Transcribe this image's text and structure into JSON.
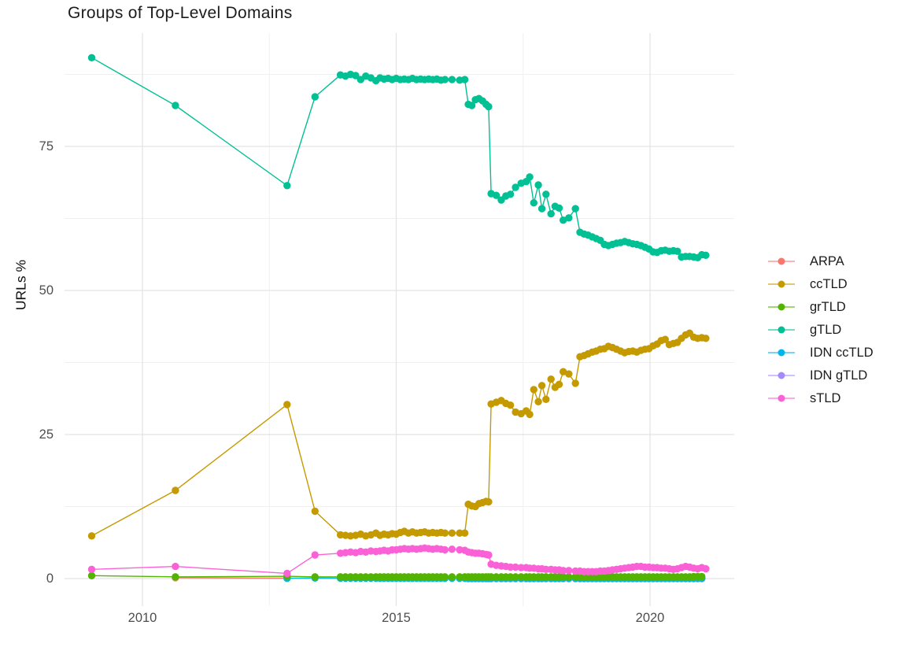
{
  "title": "Groups of Top-Level Domains",
  "y_axis": {
    "label": "URLs %",
    "tick_labels": [
      "0",
      "25",
      "50",
      "75"
    ],
    "tick_values": [
      0,
      25,
      50,
      75
    ],
    "minor_values": [
      12.5,
      37.5,
      62.5,
      87.5
    ]
  },
  "x_axis": {
    "tick_labels": [
      "2010",
      "2015",
      "2020"
    ],
    "tick_values": [
      2010,
      2015,
      2020
    ],
    "minor_values": [
      2012.5,
      2017.5
    ]
  },
  "legend": {
    "items": [
      {
        "label": "ARPA",
        "color": "#F8766D"
      },
      {
        "label": "ccTLD",
        "color": "#C49A00"
      },
      {
        "label": "grTLD",
        "color": "#53B400"
      },
      {
        "label": "gTLD",
        "color": "#00C094"
      },
      {
        "label": "IDN ccTLD",
        "color": "#00B6EB"
      },
      {
        "label": "IDN gTLD",
        "color": "#A58AFF"
      },
      {
        "label": "sTLD",
        "color": "#FB61D7"
      }
    ]
  },
  "colors": {
    "grid_major": "#e3e3e3",
    "grid_minor": "#f0f0f0",
    "axis_text": "#4e4e4e",
    "title_text": "#1c1c1c"
  },
  "chart_data": {
    "type": "line",
    "title": "Groups of Top-Level Domains",
    "xlabel": "",
    "ylabel": "URLs %",
    "ylim": [
      -2,
      93
    ],
    "xlim": [
      2008.35,
      2021.65
    ],
    "grid": true,
    "legend_position": "right",
    "x": [
      2009.0,
      2010.65,
      2012.85,
      2013.4,
      2013.9,
      2014.0,
      2014.1,
      2014.2,
      2014.3,
      2014.4,
      2014.5,
      2014.6,
      2014.68,
      2014.76,
      2014.84,
      2014.92,
      2015.0,
      2015.08,
      2015.16,
      2015.24,
      2015.32,
      2015.4,
      2015.48,
      2015.56,
      2015.64,
      2015.72,
      2015.8,
      2015.88,
      2015.96,
      2016.1,
      2016.25,
      2016.35,
      2016.42,
      2016.49,
      2016.56,
      2016.63,
      2016.7,
      2016.77,
      2016.82,
      2016.87,
      2016.97,
      2017.07,
      2017.16,
      2017.25,
      2017.35,
      2017.46,
      2017.56,
      2017.63,
      2017.71,
      2017.8,
      2017.87,
      2017.95,
      2018.05,
      2018.13,
      2018.21,
      2018.29,
      2018.4,
      2018.53,
      2018.62,
      2018.7,
      2018.78,
      2018.86,
      2018.94,
      2019.02,
      2019.1,
      2019.18,
      2019.26,
      2019.34,
      2019.42,
      2019.5,
      2019.58,
      2019.66,
      2019.74,
      2019.82,
      2019.9,
      2019.98,
      2020.06,
      2020.14,
      2020.22,
      2020.3,
      2020.38,
      2020.46,
      2020.54,
      2020.62,
      2020.7,
      2020.78,
      2020.86,
      2020.94,
      2021.02,
      2021.1
    ],
    "series": [
      {
        "name": "ARPA",
        "color": "#F8766D",
        "z": 0,
        "values": [
          null,
          0.15,
          0.07
        ]
      },
      {
        "name": "ccTLD",
        "color": "#C49A00",
        "z": 4,
        "values": [
          7.4,
          15.3,
          30.2,
          11.7,
          7.6,
          7.5,
          7.4,
          7.5,
          7.7,
          7.4,
          7.6,
          7.9,
          7.5,
          7.7,
          7.6,
          7.8,
          7.7,
          8.0,
          8.2,
          7.9,
          8.1,
          7.9,
          8.0,
          8.1,
          7.9,
          8.0,
          7.9,
          8.0,
          7.9,
          7.9,
          7.9,
          7.9,
          12.9,
          12.6,
          12.5,
          13.0,
          13.2,
          13.4,
          13.3,
          30.3,
          30.6,
          30.9,
          30.4,
          30.1,
          28.9,
          28.6,
          29.1,
          28.5,
          32.8,
          30.7,
          33.5,
          31.1,
          34.6,
          33.2,
          33.7,
          35.9,
          35.5,
          33.9,
          38.5,
          38.7,
          39.0,
          39.3,
          39.5,
          39.8,
          39.9,
          40.3,
          40.1,
          39.8,
          39.5,
          39.2,
          39.4,
          39.5,
          39.3,
          39.6,
          39.8,
          39.9,
          40.4,
          40.7,
          41.3,
          41.5,
          40.6,
          40.8,
          41.0,
          41.7,
          42.3,
          42.6,
          41.9,
          41.7,
          41.8,
          41.7
        ]
      },
      {
        "name": "grTLD",
        "color": "#53B400",
        "z": 3,
        "values": [
          0.5,
          0.3,
          0.4,
          0.3,
          0.3,
          0.3,
          0.3,
          0.3,
          0.3,
          0.3,
          0.3,
          0.3,
          0.3,
          0.3,
          0.3,
          0.3,
          0.3,
          0.3,
          0.3,
          0.3,
          0.3,
          0.3,
          0.3,
          0.3,
          0.3,
          0.3,
          0.3,
          0.3,
          0.3,
          0.3,
          0.3,
          0.3,
          0.3,
          0.3,
          0.3,
          0.3,
          0.3,
          0.3,
          0.3,
          0.3,
          0.3,
          0.3,
          0.3,
          0.3,
          0.3,
          0.3,
          0.3,
          0.3,
          0.3,
          0.3,
          0.3,
          0.3,
          0.3,
          0.3,
          0.3,
          0.3,
          0.3,
          0.3,
          0.3,
          0.3,
          0.3,
          0.3,
          0.3,
          0.3,
          0.3,
          0.3,
          0.3,
          0.3,
          0.3,
          0.3,
          0.3,
          0.3,
          0.3,
          0.3,
          0.3,
          0.3,
          0.3,
          0.3,
          0.3,
          0.3,
          0.3,
          0.3,
          0.3,
          0.3,
          0.3,
          0.3,
          0.35,
          0.35,
          0.35
        ]
      },
      {
        "name": "gTLD",
        "color": "#00C094",
        "z": 5,
        "values": [
          90.4,
          82.1,
          68.2,
          83.6,
          87.4,
          87.2,
          87.5,
          87.3,
          86.6,
          87.2,
          86.9,
          86.4,
          86.9,
          86.7,
          86.8,
          86.6,
          86.8,
          86.6,
          86.7,
          86.6,
          86.8,
          86.6,
          86.7,
          86.6,
          86.7,
          86.6,
          86.7,
          86.5,
          86.6,
          86.6,
          86.5,
          86.6,
          82.3,
          82.1,
          83.1,
          83.3,
          82.9,
          82.3,
          81.9,
          66.8,
          66.5,
          65.7,
          66.4,
          66.7,
          67.9,
          68.6,
          68.9,
          69.7,
          65.2,
          68.3,
          64.2,
          66.7,
          63.3,
          64.6,
          64.3,
          62.2,
          62.6,
          64.2,
          60.1,
          59.8,
          59.6,
          59.3,
          59.0,
          58.7,
          58.0,
          57.8,
          58.0,
          58.2,
          58.3,
          58.5,
          58.3,
          58.1,
          58.0,
          57.8,
          57.5,
          57.2,
          56.7,
          56.6,
          56.9,
          57.0,
          56.8,
          56.9,
          56.8,
          55.8,
          55.9,
          55.9,
          55.8,
          55.7,
          56.2,
          56.1
        ]
      },
      {
        "name": "IDN ccTLD",
        "color": "#00B6EB",
        "z": 2,
        "values": [
          null,
          null,
          0.05,
          0.1,
          0.07,
          0.07,
          0.07,
          0.07,
          0.07,
          0.07,
          0.07,
          0.07,
          0.07,
          0.07,
          0.07,
          0.07,
          0.07,
          0.07,
          0.07,
          0.07,
          0.07,
          0.07,
          0.07,
          0.07,
          0.07,
          0.07,
          0.07,
          0.07,
          0.07,
          0.07,
          0.07,
          0.07,
          0.07,
          0.07,
          0.07,
          0.07,
          0.07,
          0.07,
          0.07,
          0.07,
          0.07,
          0.07,
          0.07,
          0.07,
          0.07,
          0.07,
          0.07,
          0.07,
          0.07,
          0.07,
          0.07,
          0.07,
          0.07,
          0.07,
          0.07,
          0.07,
          0.07,
          0.07,
          0.07,
          0.07,
          0.07,
          0.07,
          0.07,
          0.07,
          0.07,
          0.07,
          0.07,
          0.07,
          0.07,
          0.07,
          0.07,
          0.07,
          0.07,
          0.07,
          0.07,
          0.07,
          0.07,
          0.07,
          0.07,
          0.07,
          0.07,
          0.07,
          0.07,
          0.07,
          0.07,
          0.07,
          0.07,
          0.07,
          0.07
        ]
      },
      {
        "name": "IDN gTLD",
        "color": "#A58AFF",
        "z": 1,
        "values": [
          null,
          null,
          null,
          null,
          null,
          null,
          null,
          null,
          null,
          null,
          null,
          null,
          null,
          null,
          null,
          null,
          null,
          null,
          null,
          null,
          null,
          null,
          null,
          null,
          null,
          null,
          null,
          null,
          null,
          null,
          null,
          null,
          0.0,
          0.0,
          0.0,
          0.0,
          0.0,
          0.0,
          0.0,
          0.0,
          0.0,
          0.0,
          0.0,
          0.0,
          0.0,
          0.0,
          0.0,
          0.0,
          0.0,
          0.0,
          0.0,
          0.0,
          0.0,
          0.0,
          0.0,
          0.0,
          0.0,
          0.0,
          0.0,
          0.0,
          0.0,
          0.0,
          0.0,
          0.0,
          0.0,
          0.0,
          0.0,
          0.0,
          0.0,
          0.0,
          0.0,
          0.0,
          0.0,
          0.0,
          0.0,
          0.0,
          0.0,
          0.0,
          0.0,
          0.0,
          0.0,
          0.0,
          0.0,
          0.0,
          0.0,
          0.0,
          0.0,
          0.0,
          0.0
        ]
      },
      {
        "name": "sTLD",
        "color": "#FB61D7",
        "z": 6,
        "values": [
          1.6,
          2.1,
          0.9,
          4.1,
          4.4,
          4.5,
          4.6,
          4.5,
          4.7,
          4.6,
          4.8,
          4.7,
          4.8,
          4.9,
          4.8,
          5.0,
          5.0,
          5.1,
          5.2,
          5.1,
          5.2,
          5.1,
          5.2,
          5.3,
          5.2,
          5.1,
          5.2,
          5.1,
          5.0,
          5.1,
          5.0,
          4.9,
          4.6,
          4.5,
          4.4,
          4.4,
          4.3,
          4.2,
          4.1,
          2.5,
          2.3,
          2.2,
          2.1,
          2.0,
          2.0,
          1.9,
          1.9,
          1.8,
          1.8,
          1.7,
          1.7,
          1.6,
          1.6,
          1.5,
          1.5,
          1.4,
          1.4,
          1.3,
          1.3,
          1.2,
          1.2,
          1.2,
          1.2,
          1.3,
          1.3,
          1.4,
          1.5,
          1.6,
          1.7,
          1.8,
          1.9,
          2.0,
          2.1,
          2.1,
          2.0,
          2.0,
          1.9,
          1.9,
          1.8,
          1.8,
          1.7,
          1.6,
          1.7,
          1.9,
          2.1,
          2.0,
          1.8,
          1.7,
          1.9,
          1.7
        ]
      }
    ]
  }
}
